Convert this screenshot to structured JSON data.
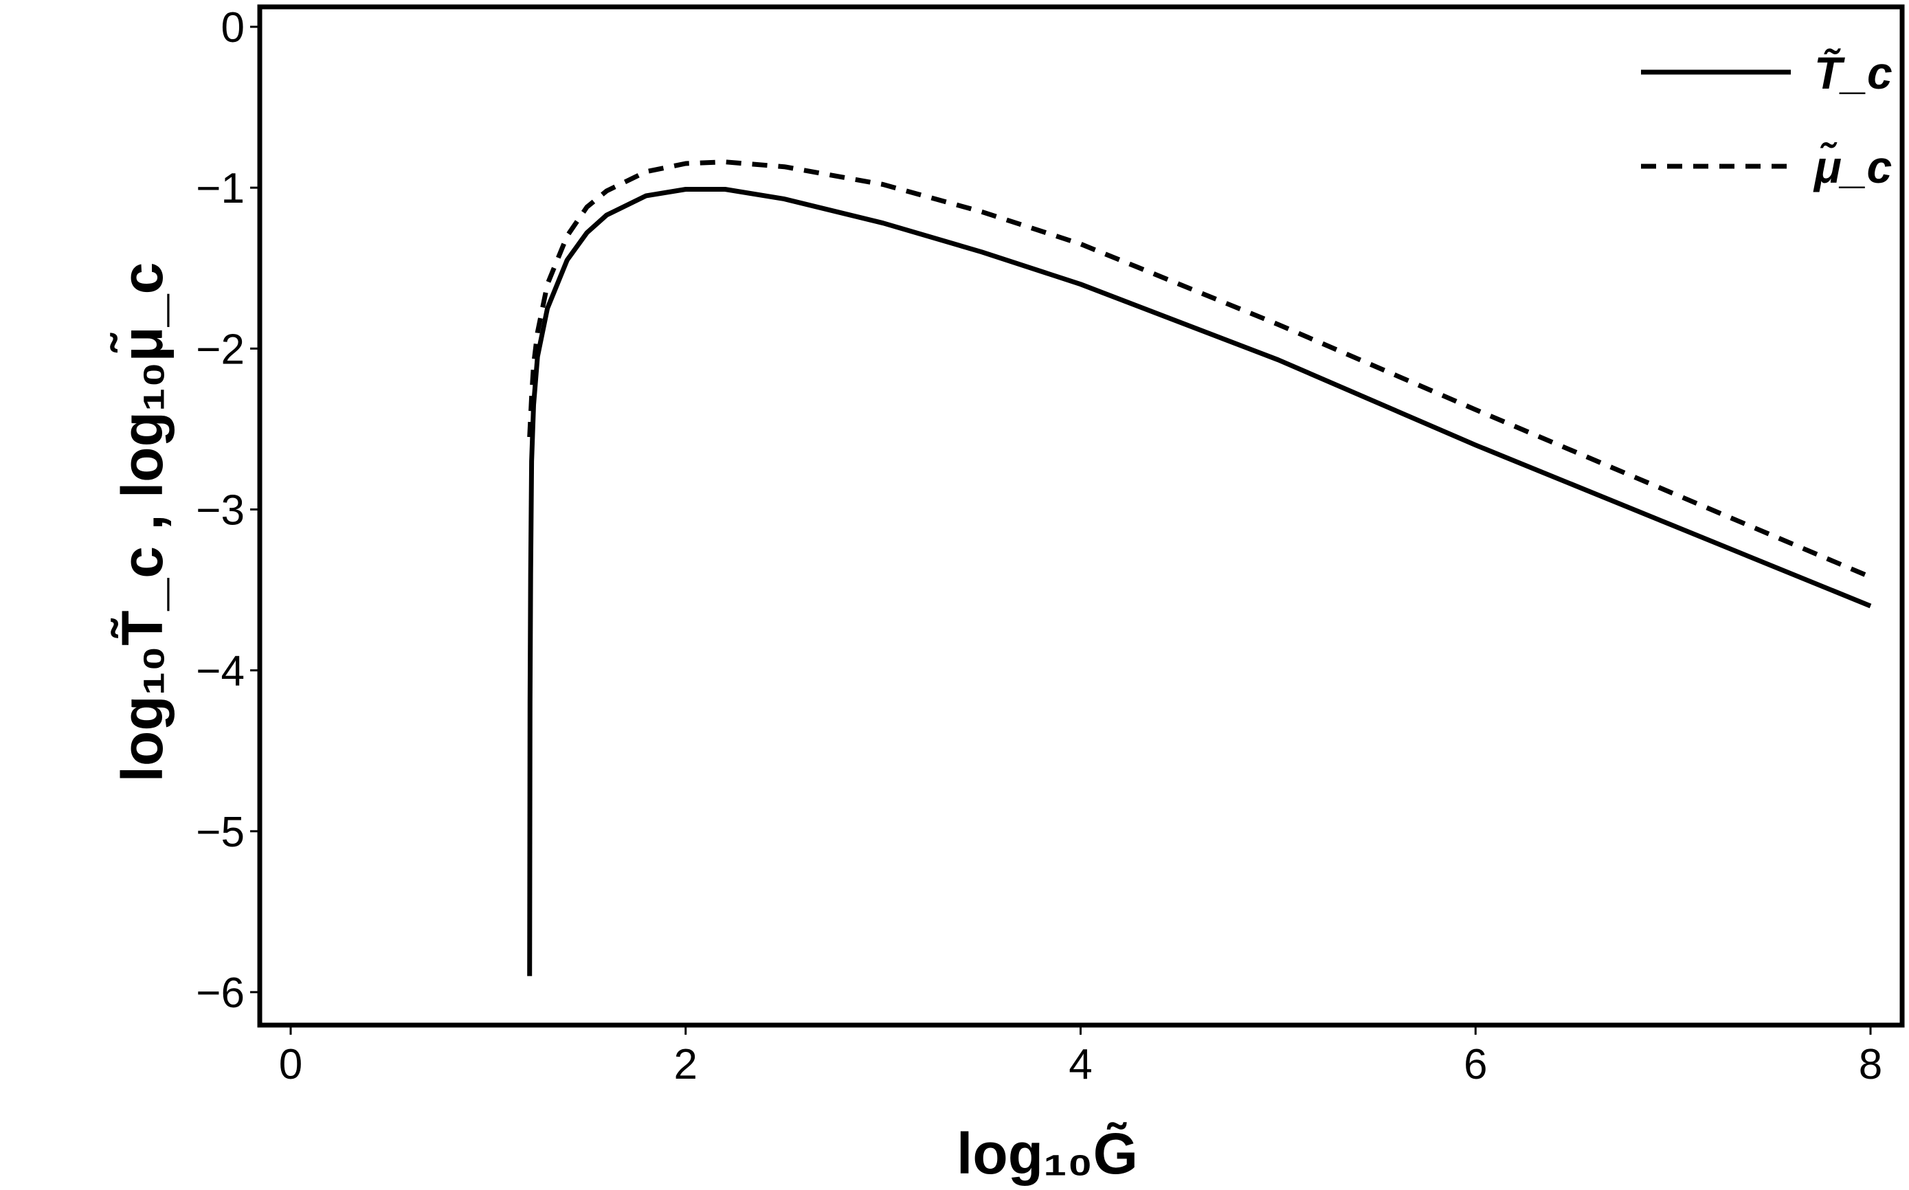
{
  "chart_data": {
    "type": "line",
    "xlabel": "log₁₀G̃",
    "ylabel": "log₁₀T̃_c , log₁₀μ̃_c",
    "xlim": [
      0,
      8
    ],
    "ylim": [
      -6.2,
      0.1
    ],
    "x_ticks": [
      "0",
      "2",
      "4",
      "6",
      "8"
    ],
    "y_ticks": [
      "0",
      "−1",
      "−2",
      "−3",
      "−4",
      "−5",
      "−6"
    ],
    "grid": false,
    "legend_position": "top-right",
    "series": [
      {
        "name": "T̃_c",
        "style": "solid",
        "color": "#000000",
        "x": [
          1.21,
          1.212,
          1.215,
          1.22,
          1.23,
          1.25,
          1.3,
          1.4,
          1.5,
          1.6,
          1.8,
          2.0,
          2.2,
          2.5,
          3.0,
          3.5,
          4.0,
          5.0,
          6.0,
          7.0,
          8.0
        ],
        "y": [
          -5.9,
          -4.2,
          -3.4,
          -2.7,
          -2.35,
          -2.05,
          -1.75,
          -1.45,
          -1.28,
          -1.17,
          -1.05,
          -1.01,
          -1.01,
          -1.07,
          -1.22,
          -1.4,
          -1.6,
          -2.07,
          -2.6,
          -3.1,
          -3.6
        ]
      },
      {
        "name": "μ̃_c",
        "style": "dashed",
        "color": "#000000",
        "x": [
          1.21,
          1.22,
          1.23,
          1.25,
          1.3,
          1.4,
          1.5,
          1.6,
          1.8,
          2.0,
          2.2,
          2.5,
          3.0,
          3.5,
          4.0,
          5.0,
          6.0,
          7.0,
          8.0
        ],
        "y": [
          -2.55,
          -2.3,
          -2.1,
          -1.9,
          -1.6,
          -1.3,
          -1.12,
          -1.02,
          -0.9,
          -0.85,
          -0.84,
          -0.87,
          -0.98,
          -1.15,
          -1.35,
          -1.85,
          -2.38,
          -2.9,
          -3.42
        ]
      }
    ]
  }
}
